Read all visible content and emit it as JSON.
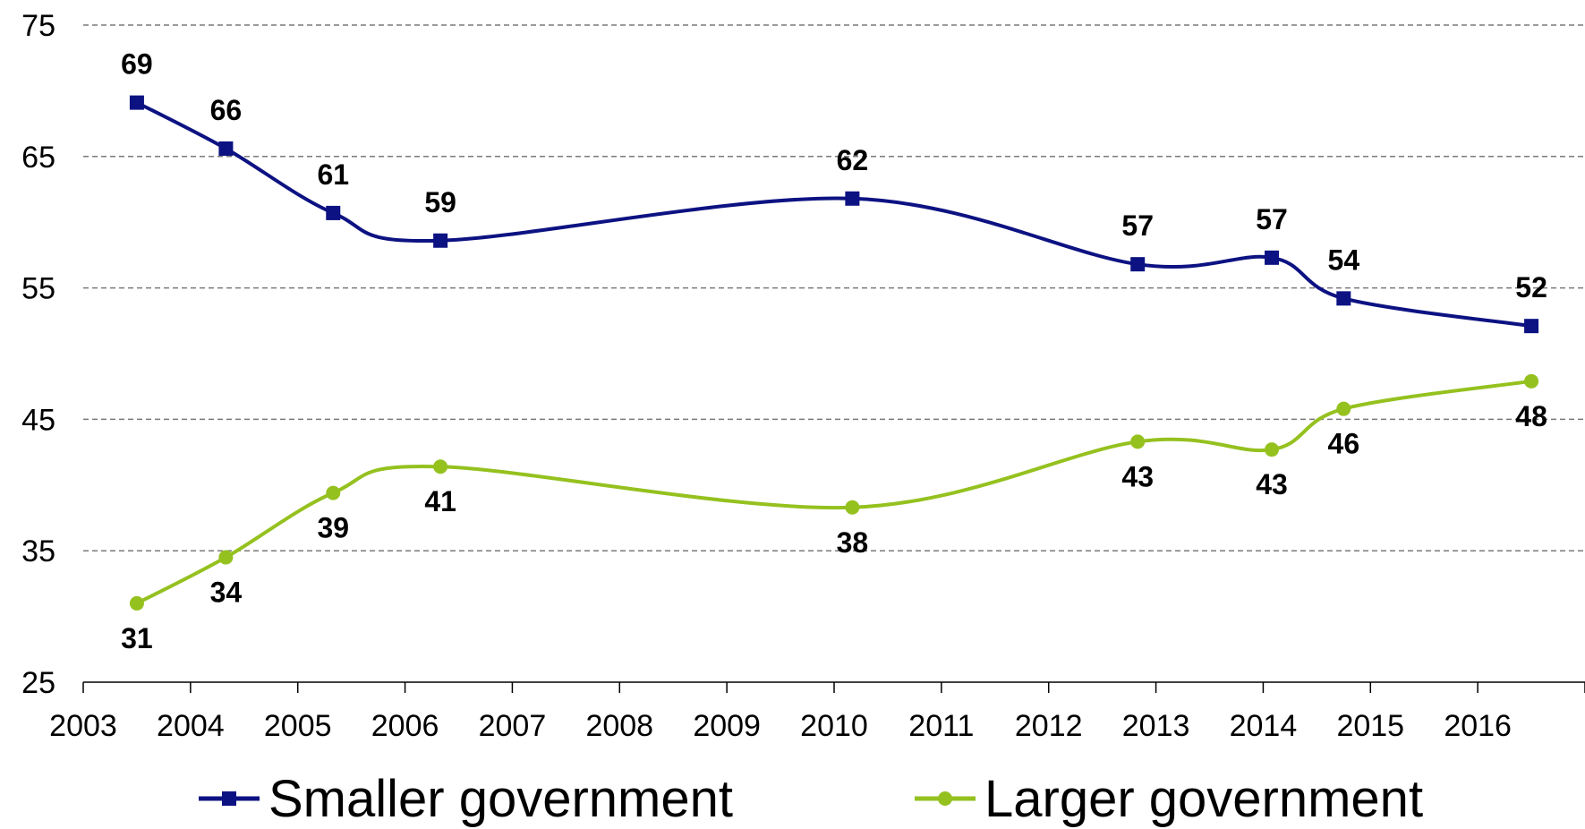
{
  "chart_data": {
    "type": "line",
    "title": "",
    "xlabel": "",
    "ylabel": "",
    "xlim": [
      2003,
      2017
    ],
    "ylim": [
      25,
      75
    ],
    "yticks": [
      25,
      35,
      45,
      55,
      65,
      75
    ],
    "xticks": [
      2003,
      2004,
      2005,
      2006,
      2007,
      2008,
      2009,
      2010,
      2011,
      2012,
      2013,
      2014,
      2015,
      2016
    ],
    "grid": "horizontal-dashed",
    "legend": "bottom",
    "series": [
      {
        "name": "Smaller government",
        "color": "#0d1282",
        "marker": "square",
        "points": [
          {
            "x": 2003.5,
            "y": 69.1,
            "label": "69"
          },
          {
            "x": 2004.33,
            "y": 65.6,
            "label": "66"
          },
          {
            "x": 2005.33,
            "y": 60.7,
            "label": "61"
          },
          {
            "x": 2006.33,
            "y": 58.6,
            "label": "59"
          },
          {
            "x": 2010.17,
            "y": 61.8,
            "label": "62"
          },
          {
            "x": 2012.83,
            "y": 56.8,
            "label": "57"
          },
          {
            "x": 2014.08,
            "y": 57.3,
            "label": "57"
          },
          {
            "x": 2014.75,
            "y": 54.2,
            "label": "54"
          },
          {
            "x": 2016.5,
            "y": 52.1,
            "label": "52"
          }
        ]
      },
      {
        "name": "Larger government",
        "color": "#95c11f",
        "marker": "circle",
        "points": [
          {
            "x": 2003.5,
            "y": 31.0,
            "label": "31"
          },
          {
            "x": 2004.33,
            "y": 34.5,
            "label": "34"
          },
          {
            "x": 2005.33,
            "y": 39.4,
            "label": "39"
          },
          {
            "x": 2006.33,
            "y": 41.4,
            "label": "41"
          },
          {
            "x": 2010.17,
            "y": 38.3,
            "label": "38"
          },
          {
            "x": 2012.83,
            "y": 43.3,
            "label": "43"
          },
          {
            "x": 2014.08,
            "y": 42.7,
            "label": "43"
          },
          {
            "x": 2014.75,
            "y": 45.8,
            "label": "46"
          },
          {
            "x": 2016.5,
            "y": 47.9,
            "label": "48"
          }
        ]
      }
    ]
  }
}
